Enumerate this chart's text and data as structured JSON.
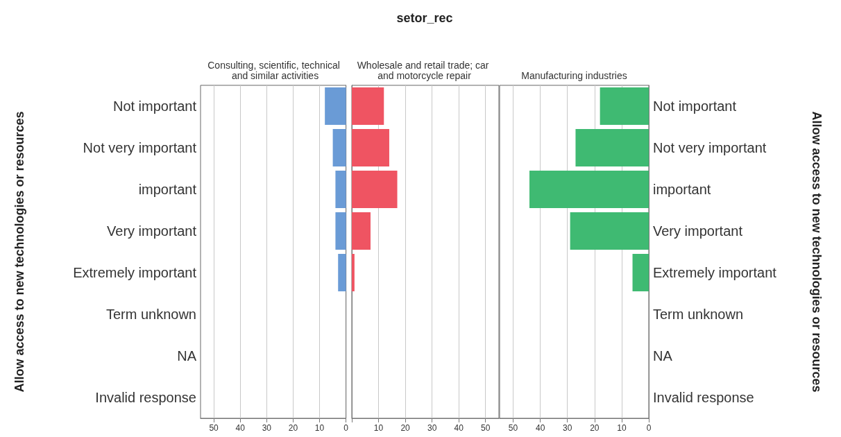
{
  "chart_data": [
    {
      "type": "bar",
      "orientation": "horizontal",
      "subtitle": "Consulting, scientific, technical and similar activities",
      "ylabel": "Allow access to new technologies or resources",
      "categories": [
        "Not important",
        "Not very important",
        "important",
        "Very important",
        "Extremely important",
        "Term unknown",
        "NA",
        "Invalid response"
      ],
      "values": [
        8,
        5,
        4,
        4,
        3,
        0,
        0,
        0
      ],
      "color": "#6a9bd6",
      "xlim": [
        55,
        0
      ],
      "xticks": [
        50,
        40,
        30,
        20,
        10,
        0
      ],
      "grid": "x"
    },
    {
      "type": "bar",
      "orientation": "horizontal",
      "title": "setor_rec",
      "subtitle": "Wholesale and retail trade; car and motorcycle repair",
      "categories": [
        "Not important",
        "Not very important",
        "important",
        "Very important",
        "Extremely important",
        "Term unknown",
        "NA",
        "Invalid response"
      ],
      "values": [
        12,
        14,
        17,
        7,
        1,
        0,
        0,
        0
      ],
      "color": "#ef5462",
      "xlim": [
        0,
        55
      ],
      "xticks": [
        {
          "value": 0,
          "label": null
        },
        10,
        20,
        30,
        40,
        50
      ],
      "grid": "x",
      "tick_labels": "x"
    },
    {
      "type": "bar",
      "orientation": "horizontal",
      "subtitle": "Manufacturing industries",
      "ylabel": "Allow access to new technologies or resources",
      "categories": [
        "Not important",
        "Not very important",
        "important",
        "Very important",
        "Extremely important",
        "Term unknown",
        "NA",
        "Invalid response"
      ],
      "values": [
        18,
        27,
        44,
        29,
        6,
        0,
        0,
        0
      ],
      "color": "#3fba72",
      "xlim": [
        55,
        0
      ],
      "xticks": [
        50,
        40,
        30,
        20,
        10,
        0
      ],
      "grid": "x"
    }
  ]
}
